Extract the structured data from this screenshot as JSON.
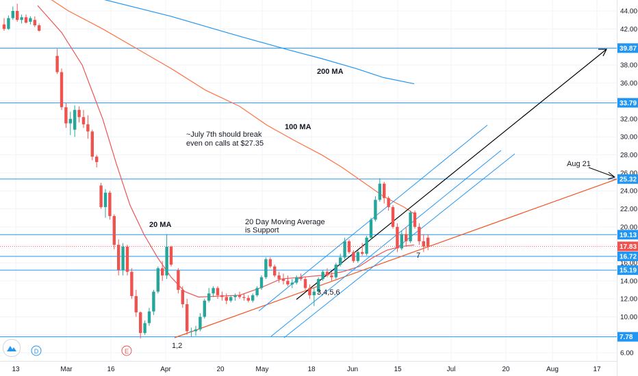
{
  "chart_data": {
    "type": "candlestick",
    "y_range": [
      6,
      45
    ],
    "y_ticks": [
      "44.00",
      "42.00",
      "40.00",
      "38.00",
      "36.00",
      "34.00",
      "32.00",
      "30.00",
      "28.00",
      "26.00",
      "24.00",
      "22.00",
      "20.00",
      "18.00",
      "16.00",
      "14.00",
      "12.00",
      "10.00",
      "8.00",
      "6.00"
    ],
    "x_ticks": [
      "13",
      "Mar",
      "16",
      "Apr",
      "20",
      "May",
      "18",
      "Jun",
      "15",
      "Jul",
      "20",
      "Aug",
      "17"
    ],
    "colors": {
      "up": "#26a69a",
      "down": "#ef5350",
      "ma20": "#ef5350",
      "ma100": "#ff7043",
      "ma200": "#2196f3",
      "levels": "#2196f3",
      "channel": "#2196f3",
      "trend": "#000000",
      "support": "#f4511e"
    },
    "price_levels": [
      {
        "value": "39.87",
        "label": "39.87"
      },
      {
        "value": "33.79",
        "label": "33.79"
      },
      {
        "value": "25.32",
        "label": "25.32"
      },
      {
        "value": "19.13",
        "label": "19.13"
      },
      {
        "value": "16.72",
        "label": "16.72"
      },
      {
        "value": "15.19",
        "label": "15.19"
      },
      {
        "value": "7.78",
        "label": "7.78"
      }
    ],
    "current_price": "17.83",
    "candles": [
      {
        "date": "Feb 10",
        "o": 42.5,
        "h": 43.2,
        "l": 41.8,
        "c": 42.0
      },
      {
        "date": "Feb 11",
        "o": 42.0,
        "h": 43.5,
        "l": 41.9,
        "c": 43.2
      },
      {
        "date": "Feb 12",
        "o": 43.2,
        "h": 44.5,
        "l": 43.0,
        "c": 44.0
      },
      {
        "date": "Feb 13",
        "o": 44.0,
        "h": 44.8,
        "l": 42.8,
        "c": 43.0
      },
      {
        "date": "Feb 14",
        "o": 43.0,
        "h": 43.6,
        "l": 42.6,
        "c": 43.3
      },
      {
        "date": "Feb 18",
        "o": 43.3,
        "h": 43.6,
        "l": 42.6,
        "c": 42.7
      },
      {
        "date": "Feb 19",
        "o": 42.8,
        "h": 43.4,
        "l": 42.5,
        "c": 43.2
      },
      {
        "date": "Feb 20",
        "o": 43.0,
        "h": 43.4,
        "l": 42.2,
        "c": 42.4
      },
      {
        "date": "Feb 21",
        "o": 42.4,
        "h": 42.6,
        "l": 41.7,
        "c": 41.8
      },
      {
        "date": "Feb 24",
        "o": 39.0,
        "h": 39.8,
        "l": 37.0,
        "c": 37.2
      },
      {
        "date": "Feb 25",
        "o": 37.2,
        "h": 37.6,
        "l": 33.0,
        "c": 33.3
      },
      {
        "date": "Feb 26",
        "o": 33.3,
        "h": 33.8,
        "l": 31.0,
        "c": 31.5
      },
      {
        "date": "Feb 27",
        "o": 31.5,
        "h": 32.8,
        "l": 30.2,
        "c": 32.0
      },
      {
        "date": "Feb 28",
        "o": 30.8,
        "h": 33.5,
        "l": 30.0,
        "c": 33.0
      },
      {
        "date": "Mar 2",
        "o": 33.0,
        "h": 33.4,
        "l": 31.6,
        "c": 32.2
      },
      {
        "date": "Mar 3",
        "o": 32.2,
        "h": 33.0,
        "l": 31.0,
        "c": 31.4
      },
      {
        "date": "Mar 4",
        "o": 31.4,
        "h": 32.4,
        "l": 29.8,
        "c": 30.6
      },
      {
        "date": "Mar 5",
        "o": 30.6,
        "h": 30.8,
        "l": 27.4,
        "c": 27.8
      },
      {
        "date": "Mar 6",
        "o": 27.8,
        "h": 28.0,
        "l": 26.6,
        "c": 27.2
      },
      {
        "date": "Mar 9",
        "o": 24.6,
        "h": 24.9,
        "l": 22.0,
        "c": 22.2
      },
      {
        "date": "Mar 10",
        "o": 22.2,
        "h": 24.2,
        "l": 21.0,
        "c": 23.8
      },
      {
        "date": "Mar 11",
        "o": 23.8,
        "h": 24.0,
        "l": 20.8,
        "c": 21.2
      },
      {
        "date": "Mar 12",
        "o": 21.2,
        "h": 21.4,
        "l": 17.5,
        "c": 18.0
      },
      {
        "date": "Mar 13",
        "o": 18.0,
        "h": 18.6,
        "l": 14.6,
        "c": 15.2
      },
      {
        "date": "Mar 16",
        "o": 15.2,
        "h": 18.2,
        "l": 14.6,
        "c": 17.8
      },
      {
        "date": "Mar 17",
        "o": 17.8,
        "h": 18.0,
        "l": 14.6,
        "c": 15.0
      },
      {
        "date": "Mar 18",
        "o": 15.0,
        "h": 15.4,
        "l": 12.0,
        "c": 12.3
      },
      {
        "date": "Mar 19",
        "o": 12.3,
        "h": 13.0,
        "l": 10.0,
        "c": 10.5
      },
      {
        "date": "Mar 20",
        "o": 10.5,
        "h": 10.6,
        "l": 7.6,
        "c": 8.2
      },
      {
        "date": "Mar 23",
        "o": 8.2,
        "h": 9.6,
        "l": 8.0,
        "c": 9.3
      },
      {
        "date": "Mar 24",
        "o": 9.3,
        "h": 11.0,
        "l": 9.0,
        "c": 10.6
      },
      {
        "date": "Mar 25",
        "o": 10.6,
        "h": 13.0,
        "l": 10.2,
        "c": 12.8
      },
      {
        "date": "Mar 26",
        "o": 12.8,
        "h": 15.6,
        "l": 12.6,
        "c": 15.4
      },
      {
        "date": "Mar 27",
        "o": 15.4,
        "h": 16.2,
        "l": 14.0,
        "c": 14.6
      },
      {
        "date": "Mar 30",
        "o": 14.6,
        "h": 19.2,
        "l": 14.2,
        "c": 17.8
      },
      {
        "date": "Mar 31",
        "o": 17.8,
        "h": 17.9,
        "l": 15.6,
        "c": 15.8
      },
      {
        "date": "Apr 1",
        "o": 15.2,
        "h": 15.4,
        "l": 12.6,
        "c": 13.0
      },
      {
        "date": "Apr 2",
        "o": 13.0,
        "h": 13.4,
        "l": 11.0,
        "c": 11.4
      },
      {
        "date": "Apr 3",
        "o": 11.4,
        "h": 12.0,
        "l": 8.0,
        "c": 8.4
      },
      {
        "date": "Apr 6",
        "o": 8.4,
        "h": 8.8,
        "l": 7.8,
        "c": 8.4
      },
      {
        "date": "Apr 7",
        "o": 8.4,
        "h": 9.0,
        "l": 7.9,
        "c": 8.6
      },
      {
        "date": "Apr 8",
        "o": 8.6,
        "h": 10.4,
        "l": 8.4,
        "c": 10.0
      },
      {
        "date": "Apr 9",
        "o": 10.0,
        "h": 12.0,
        "l": 9.8,
        "c": 11.8
      },
      {
        "date": "Apr 13",
        "o": 11.8,
        "h": 13.2,
        "l": 11.6,
        "c": 12.6
      },
      {
        "date": "Apr 14",
        "o": 12.6,
        "h": 13.4,
        "l": 12.2,
        "c": 13.2
      },
      {
        "date": "Apr 15",
        "o": 13.2,
        "h": 13.4,
        "l": 12.0,
        "c": 12.4
      },
      {
        "date": "Apr 16",
        "o": 12.4,
        "h": 12.8,
        "l": 11.8,
        "c": 12.2
      },
      {
        "date": "Apr 17",
        "o": 12.2,
        "h": 12.6,
        "l": 11.4,
        "c": 11.8
      },
      {
        "date": "Apr 20",
        "o": 11.8,
        "h": 12.4,
        "l": 11.6,
        "c": 12.2
      },
      {
        "date": "Apr 21",
        "o": 12.2,
        "h": 12.6,
        "l": 11.8,
        "c": 12.4
      },
      {
        "date": "Apr 22",
        "o": 12.4,
        "h": 12.8,
        "l": 12.0,
        "c": 12.2
      },
      {
        "date": "Apr 23",
        "o": 12.2,
        "h": 12.6,
        "l": 11.8,
        "c": 12.1
      },
      {
        "date": "Apr 24",
        "o": 12.1,
        "h": 12.4,
        "l": 11.6,
        "c": 11.8
      },
      {
        "date": "Apr 27",
        "o": 11.8,
        "h": 12.6,
        "l": 11.6,
        "c": 12.4
      },
      {
        "date": "Apr 28",
        "o": 12.4,
        "h": 13.4,
        "l": 12.2,
        "c": 13.2
      },
      {
        "date": "Apr 29",
        "o": 13.2,
        "h": 14.6,
        "l": 13.0,
        "c": 14.4
      },
      {
        "date": "Apr 30",
        "o": 14.4,
        "h": 16.6,
        "l": 14.2,
        "c": 16.4
      },
      {
        "date": "May 1",
        "o": 16.4,
        "h": 16.6,
        "l": 15.4,
        "c": 15.6
      },
      {
        "date": "May 4",
        "o": 15.6,
        "h": 15.8,
        "l": 14.4,
        "c": 14.6
      },
      {
        "date": "May 5",
        "o": 14.6,
        "h": 15.0,
        "l": 13.8,
        "c": 14.2
      },
      {
        "date": "May 6",
        "o": 14.2,
        "h": 14.8,
        "l": 13.6,
        "c": 14.0
      },
      {
        "date": "May 7",
        "o": 14.0,
        "h": 14.6,
        "l": 13.4,
        "c": 13.6
      },
      {
        "date": "May 8",
        "o": 13.6,
        "h": 14.2,
        "l": 13.2,
        "c": 13.8
      },
      {
        "date": "May 11",
        "o": 13.8,
        "h": 14.6,
        "l": 13.6,
        "c": 14.4
      },
      {
        "date": "May 12",
        "o": 14.4,
        "h": 14.8,
        "l": 14.0,
        "c": 14.2
      },
      {
        "date": "May 13",
        "o": 14.2,
        "h": 14.4,
        "l": 13.0,
        "c": 13.2
      },
      {
        "date": "May 14",
        "o": 13.2,
        "h": 13.6,
        "l": 12.0,
        "c": 12.4
      },
      {
        "date": "May 15",
        "o": 12.4,
        "h": 13.2,
        "l": 11.2,
        "c": 12.8
      },
      {
        "date": "May 18",
        "o": 12.8,
        "h": 14.4,
        "l": 12.6,
        "c": 14.2
      },
      {
        "date": "May 19",
        "o": 14.2,
        "h": 15.2,
        "l": 14.0,
        "c": 15.0
      },
      {
        "date": "May 20",
        "o": 15.0,
        "h": 15.4,
        "l": 14.4,
        "c": 14.6
      },
      {
        "date": "May 21",
        "o": 14.6,
        "h": 15.0,
        "l": 14.0,
        "c": 14.4
      },
      {
        "date": "May 22",
        "o": 14.4,
        "h": 16.0,
        "l": 14.2,
        "c": 15.8
      },
      {
        "date": "May 26",
        "o": 15.8,
        "h": 17.0,
        "l": 15.6,
        "c": 16.6
      },
      {
        "date": "May 27",
        "o": 16.6,
        "h": 18.8,
        "l": 16.4,
        "c": 18.4
      },
      {
        "date": "May 28",
        "o": 18.4,
        "h": 18.6,
        "l": 17.0,
        "c": 17.2
      },
      {
        "date": "May 29",
        "o": 17.2,
        "h": 17.4,
        "l": 16.0,
        "c": 16.2
      },
      {
        "date": "Jun 1",
        "o": 16.2,
        "h": 17.4,
        "l": 16.0,
        "c": 17.2
      },
      {
        "date": "Jun 2",
        "o": 17.2,
        "h": 18.2,
        "l": 16.8,
        "c": 17.0
      },
      {
        "date": "Jun 3",
        "o": 17.0,
        "h": 19.0,
        "l": 16.8,
        "c": 18.8
      },
      {
        "date": "Jun 4",
        "o": 18.8,
        "h": 21.0,
        "l": 18.6,
        "c": 20.8
      },
      {
        "date": "Jun 5",
        "o": 20.8,
        "h": 23.4,
        "l": 20.6,
        "c": 23.0
      },
      {
        "date": "Jun 8",
        "o": 23.0,
        "h": 25.4,
        "l": 22.8,
        "c": 24.8
      },
      {
        "date": "Jun 9",
        "o": 24.8,
        "h": 25.0,
        "l": 22.6,
        "c": 23.2
      },
      {
        "date": "Jun 10",
        "o": 23.2,
        "h": 23.4,
        "l": 21.8,
        "c": 22.2
      },
      {
        "date": "Jun 11",
        "o": 22.2,
        "h": 22.4,
        "l": 19.8,
        "c": 20.0
      },
      {
        "date": "Jun 12",
        "o": 20.0,
        "h": 20.4,
        "l": 17.2,
        "c": 17.6
      },
      {
        "date": "Jun 15",
        "o": 17.6,
        "h": 19.6,
        "l": 17.4,
        "c": 19.2
      },
      {
        "date": "Jun 16",
        "o": 19.2,
        "h": 20.0,
        "l": 17.8,
        "c": 18.4
      },
      {
        "date": "Jun 17",
        "o": 18.4,
        "h": 21.8,
        "l": 18.2,
        "c": 21.6
      },
      {
        "date": "Jun 18",
        "o": 21.6,
        "h": 21.8,
        "l": 19.8,
        "c": 20.0
      },
      {
        "date": "Jun 19",
        "o": 20.0,
        "h": 20.4,
        "l": 18.0,
        "c": 18.4
      },
      {
        "date": "Jun 22",
        "o": 18.4,
        "h": 19.2,
        "l": 17.2,
        "c": 17.8
      },
      {
        "date": "Jun 23",
        "o": 18.8,
        "h": 19.2,
        "l": 17.4,
        "c": 17.83
      }
    ],
    "annotations": {
      "ma200": "200 MA",
      "ma100": "100 MA",
      "ma20": "20 MA",
      "july_note_line1": "~July 7th should break",
      "july_note_line2": "even on calls at $27.35",
      "support_note_line1": "20 Day Moving Average",
      "support_note_line2": "is Support",
      "aug_label": "Aug 21",
      "count_12": "1,2",
      "count_3456": "3,4,5,6",
      "count_7": "7"
    },
    "event_markers": [
      "D",
      "E"
    ]
  }
}
